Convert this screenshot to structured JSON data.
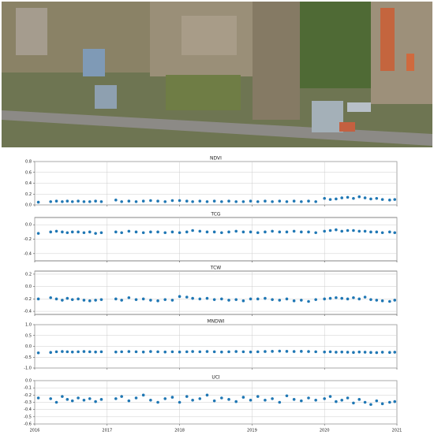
{
  "chart_data": [
    {
      "type": "scatter",
      "title": "NDVI",
      "color": "#1f77b4",
      "grid": true,
      "x": [
        2016.05,
        2016.22,
        2016.3,
        2016.38,
        2016.45,
        2016.52,
        2016.6,
        2016.68,
        2016.76,
        2016.84,
        2016.92,
        2017.12,
        2017.2,
        2017.3,
        2017.4,
        2017.5,
        2017.6,
        2017.7,
        2017.8,
        2017.9,
        2018.0,
        2018.1,
        2018.18,
        2018.28,
        2018.38,
        2018.48,
        2018.58,
        2018.68,
        2018.78,
        2018.88,
        2018.98,
        2019.08,
        2019.18,
        2019.28,
        2019.38,
        2019.48,
        2019.58,
        2019.68,
        2019.78,
        2019.88,
        2020.0,
        2020.08,
        2020.16,
        2020.24,
        2020.32,
        2020.4,
        2020.48,
        2020.56,
        2020.64,
        2020.72,
        2020.8,
        2020.9,
        2020.97
      ],
      "values": [
        0.05,
        0.06,
        0.07,
        0.06,
        0.07,
        0.06,
        0.07,
        0.06,
        0.06,
        0.07,
        0.06,
        0.09,
        0.06,
        0.07,
        0.06,
        0.07,
        0.08,
        0.07,
        0.06,
        0.08,
        0.08,
        0.07,
        0.06,
        0.07,
        0.06,
        0.07,
        0.06,
        0.07,
        0.06,
        0.06,
        0.07,
        0.06,
        0.07,
        0.06,
        0.07,
        0.06,
        0.07,
        0.06,
        0.07,
        0.06,
        0.12,
        0.1,
        0.11,
        0.13,
        0.14,
        0.12,
        0.15,
        0.13,
        0.11,
        0.12,
        0.1,
        0.09,
        0.1
      ],
      "xlim": [
        2016,
        2021
      ],
      "xticks": [
        2016,
        2017,
        2018,
        2019,
        2020,
        2021
      ],
      "ylim": [
        0,
        0.8
      ],
      "yticks": [
        {
          "value": 0,
          "label": "0.0"
        },
        0.2,
        0.4,
        0.6,
        0.8
      ]
    },
    {
      "type": "scatter",
      "title": "TCG",
      "color": "#1f77b4",
      "grid": true,
      "x": [
        2016.05,
        2016.22,
        2016.3,
        2016.38,
        2016.45,
        2016.52,
        2016.6,
        2016.68,
        2016.76,
        2016.84,
        2016.92,
        2017.12,
        2017.2,
        2017.3,
        2017.4,
        2017.5,
        2017.6,
        2017.7,
        2017.8,
        2017.9,
        2018.0,
        2018.1,
        2018.18,
        2018.28,
        2018.38,
        2018.48,
        2018.58,
        2018.68,
        2018.78,
        2018.88,
        2018.98,
        2019.08,
        2019.18,
        2019.28,
        2019.38,
        2019.48,
        2019.58,
        2019.68,
        2019.78,
        2019.88,
        2020.0,
        2020.08,
        2020.16,
        2020.24,
        2020.32,
        2020.4,
        2020.48,
        2020.56,
        2020.64,
        2020.72,
        2020.8,
        2020.9,
        2020.97
      ],
      "values": [
        -0.12,
        -0.1,
        -0.09,
        -0.1,
        -0.11,
        -0.1,
        -0.1,
        -0.11,
        -0.1,
        -0.12,
        -0.11,
        -0.1,
        -0.11,
        -0.09,
        -0.1,
        -0.11,
        -0.1,
        -0.1,
        -0.11,
        -0.1,
        -0.11,
        -0.1,
        -0.08,
        -0.09,
        -0.1,
        -0.1,
        -0.11,
        -0.1,
        -0.09,
        -0.1,
        -0.1,
        -0.11,
        -0.1,
        -0.09,
        -0.1,
        -0.1,
        -0.09,
        -0.1,
        -0.1,
        -0.11,
        -0.09,
        -0.08,
        -0.07,
        -0.09,
        -0.08,
        -0.08,
        -0.09,
        -0.09,
        -0.1,
        -0.1,
        -0.11,
        -0.1,
        -0.11
      ],
      "xlim": [
        2016,
        2021
      ],
      "xticks": [
        2016,
        2017,
        2018,
        2019,
        2020,
        2021
      ],
      "ylim": [
        -0.5,
        0.1
      ],
      "yticks": [
        {
          "value": 0,
          "label": "0.0"
        },
        -0.2,
        -0.4
      ]
    },
    {
      "type": "scatter",
      "title": "TCW",
      "color": "#1f77b4",
      "grid": true,
      "x": [
        2016.05,
        2016.22,
        2016.3,
        2016.38,
        2016.45,
        2016.52,
        2016.6,
        2016.68,
        2016.76,
        2016.84,
        2016.92,
        2017.12,
        2017.2,
        2017.3,
        2017.4,
        2017.5,
        2017.6,
        2017.7,
        2017.8,
        2017.9,
        2018.0,
        2018.1,
        2018.18,
        2018.28,
        2018.38,
        2018.48,
        2018.58,
        2018.68,
        2018.78,
        2018.88,
        2018.98,
        2019.08,
        2019.18,
        2019.28,
        2019.38,
        2019.48,
        2019.58,
        2019.68,
        2019.78,
        2019.88,
        2020.0,
        2020.08,
        2020.16,
        2020.24,
        2020.32,
        2020.4,
        2020.48,
        2020.56,
        2020.64,
        2020.72,
        2020.8,
        2020.9,
        2020.97
      ],
      "values": [
        -0.2,
        -0.18,
        -0.2,
        -0.22,
        -0.19,
        -0.21,
        -0.2,
        -0.22,
        -0.23,
        -0.22,
        -0.21,
        -0.2,
        -0.22,
        -0.18,
        -0.21,
        -0.2,
        -0.22,
        -0.23,
        -0.21,
        -0.22,
        -0.16,
        -0.17,
        -0.19,
        -0.2,
        -0.19,
        -0.21,
        -0.2,
        -0.22,
        -0.21,
        -0.23,
        -0.2,
        -0.2,
        -0.19,
        -0.21,
        -0.22,
        -0.2,
        -0.23,
        -0.22,
        -0.24,
        -0.21,
        -0.2,
        -0.19,
        -0.18,
        -0.19,
        -0.2,
        -0.18,
        -0.2,
        -0.17,
        -0.21,
        -0.22,
        -0.23,
        -0.24,
        -0.22
      ],
      "xlim": [
        2016,
        2021
      ],
      "xticks": [
        2016,
        2017,
        2018,
        2019,
        2020,
        2021
      ],
      "ylim": [
        -0.45,
        0.25
      ],
      "yticks": [
        0.2,
        {
          "value": 0,
          "label": "0.0"
        },
        -0.2,
        -0.4
      ]
    },
    {
      "type": "scatter",
      "title": "MNDWI",
      "color": "#1f77b4",
      "grid": true,
      "x": [
        2016.05,
        2016.22,
        2016.3,
        2016.38,
        2016.45,
        2016.52,
        2016.6,
        2016.68,
        2016.76,
        2016.84,
        2016.92,
        2017.12,
        2017.2,
        2017.3,
        2017.4,
        2017.5,
        2017.6,
        2017.7,
        2017.8,
        2017.9,
        2018.0,
        2018.1,
        2018.18,
        2018.28,
        2018.38,
        2018.48,
        2018.58,
        2018.68,
        2018.78,
        2018.88,
        2018.98,
        2019.08,
        2019.18,
        2019.28,
        2019.38,
        2019.48,
        2019.58,
        2019.68,
        2019.78,
        2019.88,
        2020.0,
        2020.08,
        2020.16,
        2020.24,
        2020.32,
        2020.4,
        2020.48,
        2020.56,
        2020.64,
        2020.72,
        2020.8,
        2020.9,
        2020.97
      ],
      "values": [
        -0.3,
        -0.28,
        -0.25,
        -0.24,
        -0.25,
        -0.26,
        -0.25,
        -0.24,
        -0.25,
        -0.26,
        -0.25,
        -0.26,
        -0.25,
        -0.24,
        -0.25,
        -0.26,
        -0.24,
        -0.25,
        -0.26,
        -0.25,
        -0.26,
        -0.25,
        -0.24,
        -0.25,
        -0.24,
        -0.25,
        -0.26,
        -0.25,
        -0.24,
        -0.25,
        -0.26,
        -0.25,
        -0.24,
        -0.23,
        -0.22,
        -0.23,
        -0.24,
        -0.23,
        -0.24,
        -0.25,
        -0.26,
        -0.25,
        -0.27,
        -0.26,
        -0.27,
        -0.28,
        -0.26,
        -0.27,
        -0.28,
        -0.29,
        -0.27,
        -0.28,
        -0.27
      ],
      "xlim": [
        2016,
        2021
      ],
      "xticks": [
        2016,
        2017,
        2018,
        2019,
        2020,
        2021
      ],
      "ylim": [
        -1,
        1
      ],
      "yticks": [
        {
          "value": 1,
          "label": "1.0"
        },
        0.5,
        {
          "value": 0,
          "label": "0.0"
        },
        -0.5,
        {
          "value": -1,
          "label": "-1.0"
        }
      ]
    },
    {
      "type": "scatter",
      "title": "UCI",
      "color": "#1f77b4",
      "grid": true,
      "x": [
        2016.05,
        2016.22,
        2016.3,
        2016.38,
        2016.45,
        2016.52,
        2016.6,
        2016.68,
        2016.76,
        2016.84,
        2016.92,
        2017.12,
        2017.2,
        2017.3,
        2017.4,
        2017.5,
        2017.6,
        2017.7,
        2017.8,
        2017.9,
        2018.0,
        2018.1,
        2018.18,
        2018.28,
        2018.38,
        2018.48,
        2018.58,
        2018.68,
        2018.78,
        2018.88,
        2018.98,
        2019.08,
        2019.18,
        2019.28,
        2019.38,
        2019.48,
        2019.58,
        2019.68,
        2019.78,
        2019.88,
        2020.0,
        2020.08,
        2020.16,
        2020.24,
        2020.32,
        2020.4,
        2020.48,
        2020.56,
        2020.64,
        2020.72,
        2020.8,
        2020.9,
        2020.97
      ],
      "values": [
        -0.24,
        -0.25,
        -0.3,
        -0.22,
        -0.26,
        -0.28,
        -0.24,
        -0.27,
        -0.25,
        -0.29,
        -0.26,
        -0.25,
        -0.22,
        -0.28,
        -0.24,
        -0.2,
        -0.27,
        -0.3,
        -0.25,
        -0.23,
        -0.3,
        -0.22,
        -0.27,
        -0.25,
        -0.2,
        -0.28,
        -0.24,
        -0.26,
        -0.29,
        -0.23,
        -0.27,
        -0.22,
        -0.27,
        -0.25,
        -0.3,
        -0.21,
        -0.26,
        -0.28,
        -0.24,
        -0.27,
        -0.25,
        -0.22,
        -0.29,
        -0.27,
        -0.24,
        -0.31,
        -0.26,
        -0.3,
        -0.33,
        -0.28,
        -0.32,
        -0.3,
        -0.29
      ],
      "xlim": [
        2016,
        2021
      ],
      "xticks": [
        2016,
        2017,
        2018,
        2019,
        2020,
        2021
      ],
      "ylim": [
        -0.6,
        0
      ],
      "yticks": [
        {
          "value": 0,
          "label": "0.0"
        },
        -0.1,
        -0.2,
        -0.3,
        -0.4,
        -0.5,
        -0.6
      ]
    }
  ]
}
